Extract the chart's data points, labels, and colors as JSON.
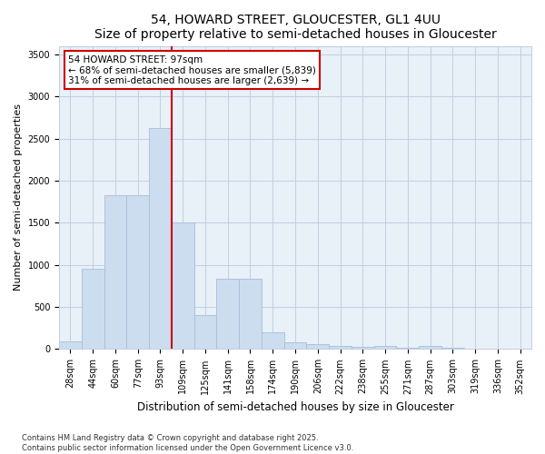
{
  "title": "54, HOWARD STREET, GLOUCESTER, GL1 4UU",
  "subtitle": "Size of property relative to semi-detached houses in Gloucester",
  "xlabel": "Distribution of semi-detached houses by size in Gloucester",
  "ylabel": "Number of semi-detached properties",
  "categories": [
    "28sqm",
    "44sqm",
    "60sqm",
    "77sqm",
    "93sqm",
    "109sqm",
    "125sqm",
    "141sqm",
    "158sqm",
    "174sqm",
    "190sqm",
    "206sqm",
    "222sqm",
    "238sqm",
    "255sqm",
    "271sqm",
    "287sqm",
    "303sqm",
    "319sqm",
    "336sqm",
    "352sqm"
  ],
  "values": [
    95,
    950,
    1830,
    1830,
    2630,
    1500,
    400,
    830,
    830,
    195,
    80,
    55,
    35,
    25,
    35,
    20,
    35,
    15,
    5,
    5,
    5
  ],
  "bar_color": "#ccddf0",
  "bar_edge_color": "#aabcd8",
  "vline_index": 4,
  "vline_color": "#cc0000",
  "annotation_title": "54 HOWARD STREET: 97sqm",
  "annotation_line1": "← 68% of semi-detached houses are smaller (5,839)",
  "annotation_line2": "31% of semi-detached houses are larger (2,639) →",
  "annotation_box_color": "#cc0000",
  "ylim": [
    0,
    3600
  ],
  "yticks": [
    0,
    500,
    1000,
    1500,
    2000,
    2500,
    3000,
    3500
  ],
  "footnote": "Contains HM Land Registry data © Crown copyright and database right 2025.\nContains public sector information licensed under the Open Government Licence v3.0.",
  "plot_bg_color": "#e8f0f8",
  "fig_bg_color": "#ffffff",
  "grid_color": "#c0cfe0",
  "title_fontsize": 10,
  "subtitle_fontsize": 9,
  "ylabel_fontsize": 8,
  "xlabel_fontsize": 8.5,
  "tick_fontsize": 7,
  "annot_fontsize": 7.5,
  "footnote_fontsize": 6
}
